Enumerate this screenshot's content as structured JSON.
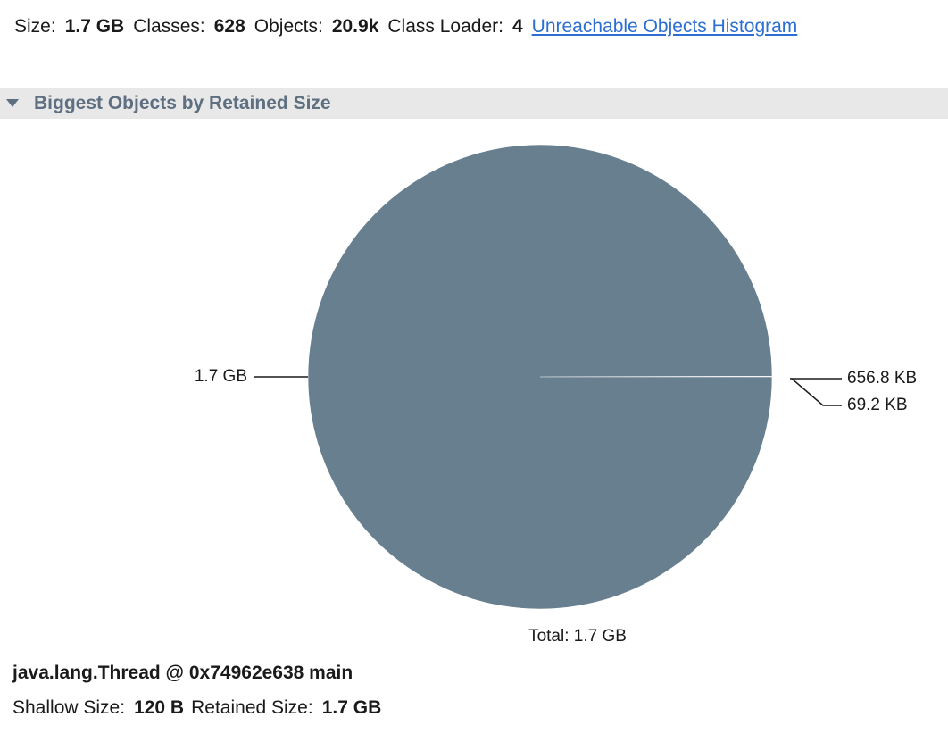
{
  "summary": {
    "size_label": "Size:",
    "size_value": "1.7 GB",
    "classes_label": "Classes:",
    "classes_value": "628",
    "objects_label": "Objects:",
    "objects_value": "20.9k",
    "class_loader_label": "Class Loader:",
    "class_loader_value": "4",
    "link_label": "Unreachable Objects Histogram"
  },
  "section": {
    "title": "Biggest Objects by Retained Size",
    "expanded": true
  },
  "chart_data": {
    "type": "pie",
    "slices": [
      {
        "label": "1.7 GB",
        "value": 1700000,
        "color": "#687f8f"
      },
      {
        "label": "656.8 KB",
        "value": 656.8,
        "color": "#687f8f"
      },
      {
        "label": "69.2 KB",
        "value": 69.2,
        "color": "#687f8f"
      }
    ],
    "total_label": "Total: 1.7 GB"
  },
  "selected_object": {
    "title": "java.lang.Thread @ 0x74962e638 main",
    "shallow_label": "Shallow Size:",
    "shallow_value": "120 B",
    "retained_label": "Retained Size:",
    "retained_value": "1.7 GB"
  },
  "colors": {
    "pie": "#687f8f",
    "header_bg": "#e8e8e8",
    "header_text": "#5d6f80",
    "link": "#2c6fd1"
  }
}
